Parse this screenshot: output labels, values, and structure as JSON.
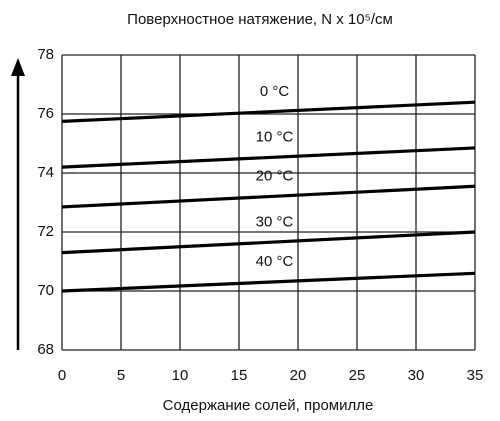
{
  "chart_data": {
    "type": "line",
    "title": "Поверхностное натяжение, N x 10⁵/см",
    "x_label": "Содержание солей, промилле",
    "x": [
      0,
      35
    ],
    "series": [
      {
        "name": "0 °C",
        "color": "#000000",
        "values": [
          75.75,
          76.4
        ]
      },
      {
        "name": "10 °C",
        "color": "#000000",
        "values": [
          74.2,
          74.85
        ]
      },
      {
        "name": "20 °C",
        "color": "#000000",
        "values": [
          72.85,
          73.55
        ]
      },
      {
        "name": "30 °C",
        "color": "#000000",
        "values": [
          71.3,
          72.0
        ]
      },
      {
        "name": "40 °C",
        "color": "#000000",
        "values": [
          70.0,
          70.6
        ]
      }
    ],
    "xlim": [
      0,
      35
    ],
    "xticks": [
      0,
      5,
      10,
      15,
      20,
      25,
      30,
      35
    ],
    "ylim": [
      68,
      78
    ],
    "yticks": [
      68,
      70,
      72,
      74,
      76,
      78
    ],
    "grid": true
  }
}
